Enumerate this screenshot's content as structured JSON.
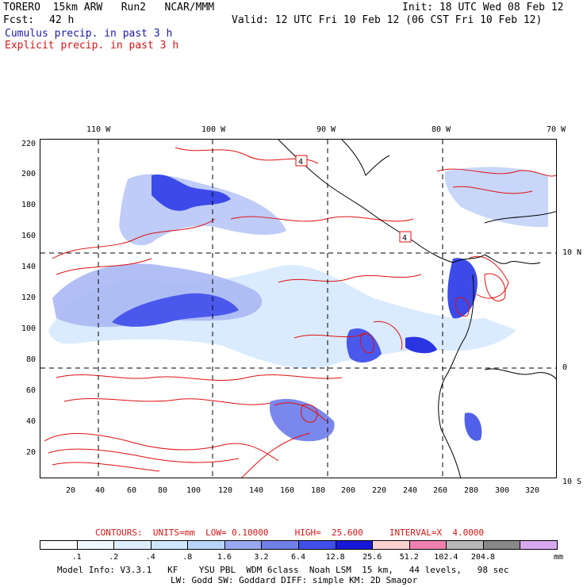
{
  "header": {
    "model": "TORERO  15km ARW   Run2   NCAR/MMM",
    "init": "Init: 18 UTC Wed 08 Feb 12",
    "fcst_label": "Fcst:",
    "fcst_hours": "42 h",
    "valid": "Valid: 12 UTC Fri 10 Feb 12 (06 CST Fri 10 Feb 12)",
    "cumulus": "Cumulus precip. in past 3 h",
    "explicit": "Explicit precip. in past 3 h"
  },
  "map": {
    "top_lon_labels": [
      "110 W",
      "100 W",
      "90 W",
      "80 W",
      "70 W"
    ],
    "right_lat_labels": [
      "10 N",
      "0",
      "10 S"
    ],
    "left_y_ticks": [
      "220",
      "200",
      "180",
      "160",
      "140",
      "120",
      "100",
      "80",
      "60",
      "40",
      "20"
    ],
    "bottom_x_ticks": [
      "20",
      "40",
      "60",
      "80",
      "100",
      "120",
      "140",
      "160",
      "180",
      "200",
      "220",
      "240",
      "260",
      "280",
      "300",
      "320"
    ],
    "contour_markers": [
      "4",
      "4"
    ],
    "colors": {
      "coast": "#000000",
      "explicit_contour": "#e01010",
      "cumulus_light": "#cfe6ff",
      "cumulus_mid": "#9aa8f0",
      "cumulus_dark": "#5060e8",
      "cumulus_heavy": "#1a20e0"
    }
  },
  "contours": {
    "text": "CONTOURS:  UNITS=mm  LOW= 0.10000     HIGH=  25.600     INTERVAL=X  4.0000"
  },
  "legend": {
    "values": [
      ".1",
      ".2",
      ".4",
      ".8",
      "1.6",
      "3.2",
      "6.4",
      "12.8",
      "25.6",
      "51.2",
      "102.4",
      "204.8"
    ],
    "unit": "mm",
    "colors": [
      "#ffffff",
      "#f0f8ff",
      "#dfeeff",
      "#cfe6ff",
      "#b8d4f8",
      "#9aa8f0",
      "#7080e8",
      "#4050e8",
      "#1818d8",
      "#ffd0d0",
      "#f080b0",
      "#b8b8b8",
      "#888888",
      "#d8a8f0"
    ]
  },
  "model_info": {
    "line1": "Model Info: V3.3.1   KF    YSU PBL  WDM 6class  Noah LSM  15 km,   44 levels,   98 sec",
    "line2": "LW: Godd SW: Goddard DIFF: simple KM: 2D Smagor"
  }
}
